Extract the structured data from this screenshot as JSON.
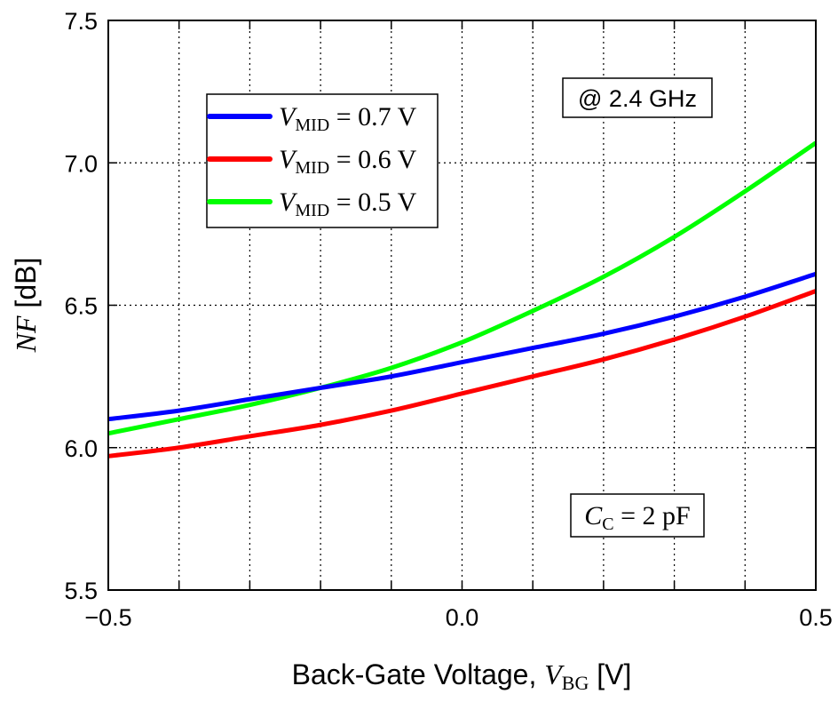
{
  "chart_data": {
    "type": "line",
    "xlabel": "Back-Gate Voltage, ",
    "xlabel_var": "V",
    "xlabel_sub": "BG",
    "xlabel_unit": " [V]",
    "ylabel_var": "NF",
    "ylabel_unit": " [dB]",
    "xlim": [
      -0.5,
      0.5
    ],
    "ylim": [
      5.5,
      7.5
    ],
    "xticks": [
      -0.5,
      0.0,
      0.5
    ],
    "xtick_labels": [
      "−0.5",
      "0.0",
      "0.5"
    ],
    "yticks": [
      5.5,
      6.0,
      6.5,
      7.0,
      7.5
    ],
    "ytick_labels": [
      "5.5",
      "6.0",
      "6.5",
      "7.0",
      "7.5"
    ],
    "x_grid_step": 0.1,
    "y_grid_step": 0.5,
    "grid": true,
    "legend_position": "top-left",
    "annotations": {
      "freq": "@ 2.4 GHz",
      "cc_var": "C",
      "cc_sub": "C",
      "cc_value": " = 2 pF"
    },
    "series": [
      {
        "name": "V_MID = 0.7 V",
        "label_var": "V",
        "label_sub": "MID",
        "label_value": " = 0.7 V",
        "color": "#0000ff",
        "x": [
          -0.5,
          -0.4,
          -0.3,
          -0.2,
          -0.1,
          0.0,
          0.1,
          0.2,
          0.3,
          0.4,
          0.5
        ],
        "y": [
          6.1,
          6.13,
          6.17,
          6.21,
          6.25,
          6.3,
          6.35,
          6.4,
          6.46,
          6.53,
          6.61
        ]
      },
      {
        "name": "V_MID = 0.6 V",
        "label_var": "V",
        "label_sub": "MID",
        "label_value": " = 0.6 V",
        "color": "#ff0000",
        "x": [
          -0.5,
          -0.4,
          -0.3,
          -0.2,
          -0.1,
          0.0,
          0.1,
          0.2,
          0.3,
          0.4,
          0.5
        ],
        "y": [
          5.97,
          6.0,
          6.04,
          6.08,
          6.13,
          6.19,
          6.25,
          6.31,
          6.38,
          6.46,
          6.55
        ]
      },
      {
        "name": "V_MID = 0.5 V",
        "label_var": "V",
        "label_sub": "MID",
        "label_value": " = 0.5 V",
        "color": "#00ff00",
        "x": [
          -0.5,
          -0.4,
          -0.3,
          -0.2,
          -0.1,
          0.0,
          0.1,
          0.2,
          0.3,
          0.4,
          0.5
        ],
        "y": [
          6.05,
          6.1,
          6.15,
          6.21,
          6.28,
          6.37,
          6.48,
          6.6,
          6.74,
          6.9,
          7.07
        ]
      }
    ]
  }
}
